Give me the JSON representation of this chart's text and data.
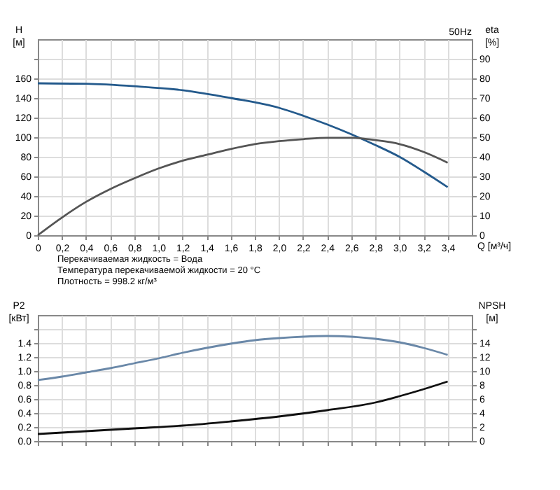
{
  "chart_data": [
    {
      "type": "line",
      "title": "50Hz",
      "xlabel": "Q [м³/ч]",
      "ylabel": "H [м]",
      "y2label": "eta [%]",
      "grid": true,
      "legend": false,
      "xlim": [
        0,
        3.6
      ],
      "xticks": [
        0,
        {
          "value": 0.2,
          "label": "0,2"
        },
        {
          "value": 0.4,
          "label": "0,4"
        },
        {
          "value": 0.6,
          "label": "0,6"
        },
        {
          "value": 0.8,
          "label": "0,8"
        },
        {
          "value": 1.0,
          "label": "1,0"
        },
        {
          "value": 1.2,
          "label": "1,2"
        },
        {
          "value": 1.4,
          "label": "1,4"
        },
        {
          "value": 1.6,
          "label": "1,6"
        },
        {
          "value": 1.8,
          "label": "1,8"
        },
        {
          "value": 2.0,
          "label": "2,0"
        },
        {
          "value": 2.2,
          "label": "2,2"
        },
        {
          "value": 2.4,
          "label": "2,4"
        },
        {
          "value": 2.6,
          "label": "2,6"
        },
        {
          "value": 2.8,
          "label": "2,8"
        },
        {
          "value": 3.0,
          "label": "3,0"
        },
        {
          "value": 3.2,
          "label": "3,2"
        },
        {
          "value": 3.4,
          "label": "3,4"
        }
      ],
      "ylim": [
        0,
        200
      ],
      "yticks": [
        0,
        20,
        40,
        60,
        80,
        100,
        120,
        140,
        160,
        {
          "value": 180,
          "label": null
        }
      ],
      "y2lim": [
        0,
        100
      ],
      "y2ticks": [
        0,
        10,
        20,
        30,
        40,
        50,
        60,
        70,
        80,
        90
      ],
      "annotations": [
        "Перекачиваемая жидкость = Вода",
        "Температура перекачиваемой жидкости = 20 °C",
        "Плотность = 998.2 кг/м³"
      ],
      "series": [
        {
          "color": "#245a8c",
          "x": [
            0,
            0.4,
            0.8,
            1.2,
            1.6,
            2.0,
            2.2,
            2.4,
            2.6,
            2.8,
            3.0,
            3.2,
            3.4
          ],
          "values": [
            155,
            154.5,
            152,
            148,
            140,
            130,
            122,
            113,
            103,
            92,
            80,
            65,
            49
          ]
        },
        {
          "color": "#555555",
          "axis": "y2",
          "x": [
            0,
            0.2,
            0.4,
            0.6,
            0.8,
            1.0,
            1.2,
            1.4,
            1.6,
            1.8,
            2.0,
            2.2,
            2.4,
            2.6,
            2.8,
            3.0,
            3.2,
            3.4
          ],
          "values": [
            0,
            9,
            17,
            23.5,
            29,
            34,
            38,
            41,
            44,
            46.5,
            48,
            49,
            49.7,
            49.7,
            48.5,
            46.5,
            42.5,
            37
          ]
        }
      ]
    },
    {
      "type": "line",
      "ylabel": "P2 [кВт]",
      "y2label": "NPSH [м]",
      "grid": true,
      "legend": false,
      "tick_labels": "y",
      "xlim": [
        0,
        3.6
      ],
      "xticks": [
        0,
        0.2,
        0.4,
        0.6,
        0.8,
        1.0,
        1.2,
        1.4,
        1.6,
        1.8,
        2.0,
        2.2,
        2.4,
        2.6,
        2.8,
        3.0,
        3.2,
        3.4
      ],
      "ylim": [
        0,
        1.8
      ],
      "yticks": [
        {
          "value": 0,
          "label": "0.0"
        },
        0.2,
        0.4,
        0.6,
        0.8,
        {
          "value": 1.0,
          "label": "1.0"
        },
        1.2,
        1.4,
        {
          "value": 1.6,
          "label": null
        }
      ],
      "y2lim": [
        0,
        18
      ],
      "y2ticks": [
        0,
        2,
        4,
        6,
        8,
        10,
        12,
        14,
        {
          "value": 16,
          "label": null
        }
      ],
      "series": [
        {
          "color": "#6a88a8",
          "x": [
            0,
            0.2,
            0.4,
            0.6,
            0.8,
            1.0,
            1.2,
            1.4,
            1.6,
            1.8,
            2.0,
            2.2,
            2.4,
            2.6,
            2.8,
            3.0,
            3.2,
            3.4
          ],
          "values": [
            0.87,
            0.92,
            0.98,
            1.04,
            1.11,
            1.18,
            1.26,
            1.33,
            1.39,
            1.44,
            1.47,
            1.49,
            1.5,
            1.49,
            1.46,
            1.41,
            1.33,
            1.23
          ]
        },
        {
          "color": "#111111",
          "axis": "y2",
          "x": [
            0,
            0.4,
            0.8,
            1.2,
            1.6,
            2.0,
            2.4,
            2.8,
            3.0,
            3.2,
            3.4
          ],
          "values": [
            1.0,
            1.4,
            1.8,
            2.2,
            2.8,
            3.5,
            4.4,
            5.5,
            6.4,
            7.4,
            8.5
          ]
        }
      ]
    }
  ]
}
